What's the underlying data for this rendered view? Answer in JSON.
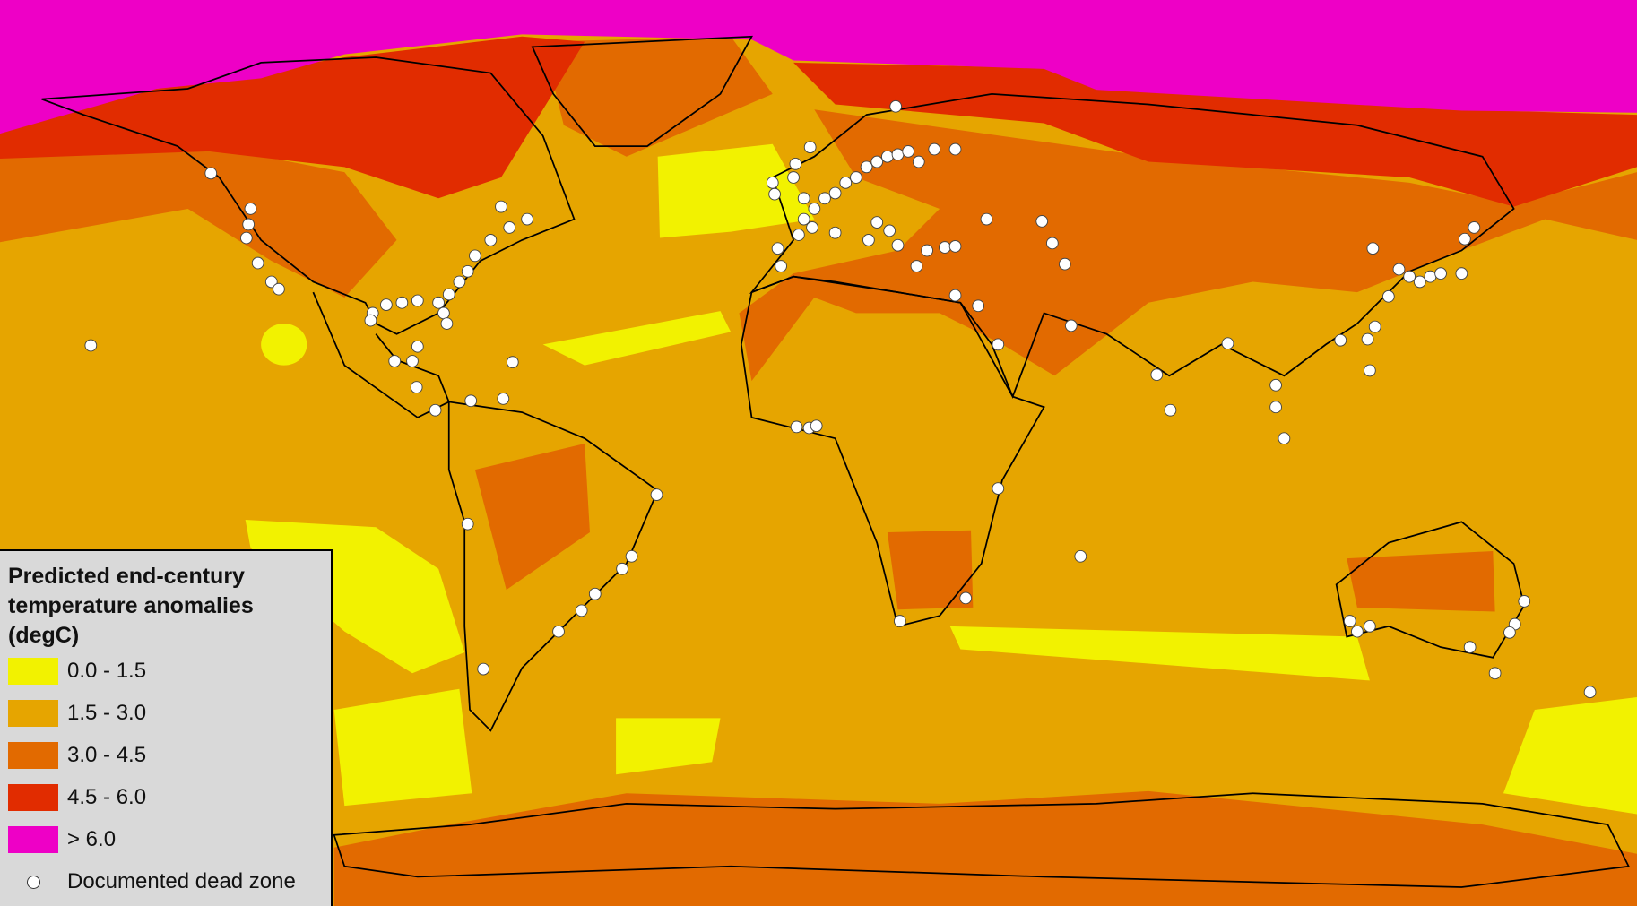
{
  "legend": {
    "title": "Predicted end-century temperature anomalies (degC)",
    "items": [
      {
        "label": "0.0 - 1.5",
        "color": "#f2f200"
      },
      {
        "label": "1.5 - 3.0",
        "color": "#e6a500"
      },
      {
        "label": "3.0 - 4.5",
        "color": "#e26a00"
      },
      {
        "label": "4.5 - 6.0",
        "color": "#e12c00"
      },
      {
        "label": "> 6.0",
        "color": "#ee00c6"
      }
    ],
    "marker_label": "Documented dead zone"
  }
}
